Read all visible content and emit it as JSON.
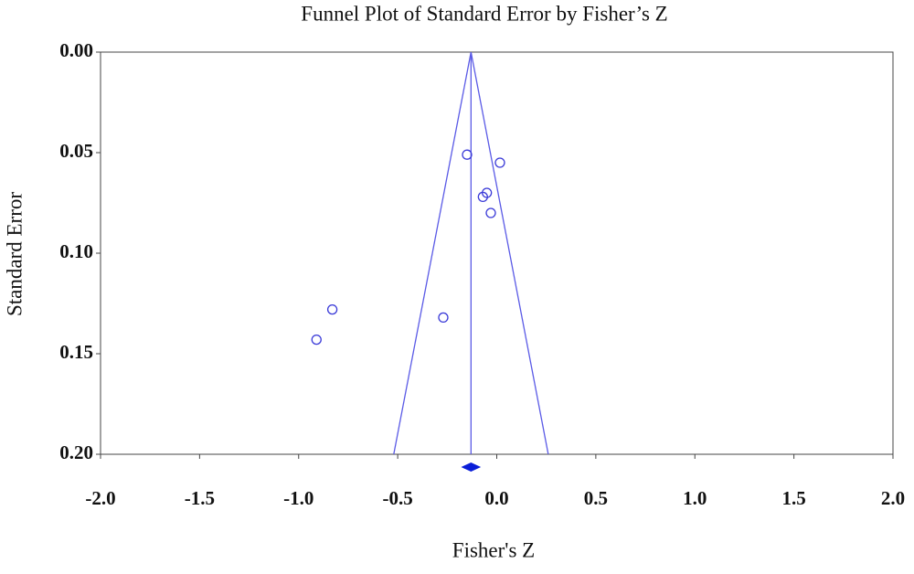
{
  "chart_data": {
    "type": "funnel",
    "title": "Funnel Plot of Standard Error by Fisher’s Z",
    "x_label": "Fisher's Z",
    "y_label": "Standard Error",
    "x": [
      -0.15,
      0.016,
      -0.07,
      -0.05,
      -0.03,
      -0.83,
      -0.27,
      -0.91
    ],
    "y": [
      0.051,
      0.055,
      0.072,
      0.07,
      0.08,
      0.128,
      0.132,
      0.143
    ],
    "mean": -0.13,
    "funnel_limits": [
      -0.52,
      0.26
    ],
    "mean_ci": [
      -0.18,
      -0.08
    ],
    "xlim": [
      -2.0,
      2.0
    ],
    "ylim": [
      0,
      0.2
    ],
    "y_inverted": true,
    "xticks": [
      {
        "value": -2,
        "label": "-2.0"
      },
      -1.5,
      {
        "value": -1,
        "label": "-1.0"
      },
      -0.5,
      {
        "value": 0,
        "label": "0.0"
      },
      0.5,
      {
        "value": 1,
        "label": "1.0"
      },
      1.5,
      {
        "value": 2,
        "label": "2.0"
      }
    ],
    "yticks": [
      {
        "value": 0,
        "label": "0.00"
      },
      0.05,
      {
        "value": 0.1,
        "label": "0.10"
      },
      0.15,
      {
        "value": 0.2,
        "label": "0.20"
      }
    ],
    "color": "#3a3ad8",
    "line_color": "#5a5ae6",
    "diamond_color": "#0a1ed8"
  }
}
